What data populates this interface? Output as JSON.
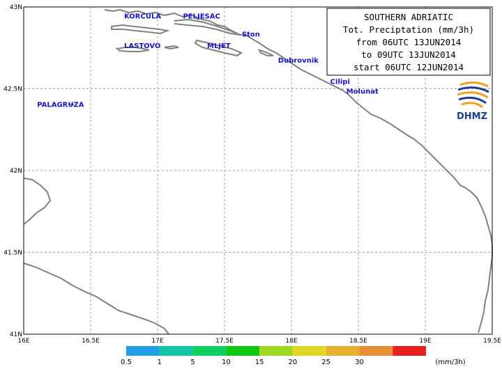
{
  "title_box": {
    "lines": [
      "SOUTHERN  ADRIATIC",
      "Tot. Preciptation (mm/3h)",
      "from 06UTC 13JUN2014",
      "to 09UTC 13JUN2014",
      "start 06UTC 12JUN2014"
    ]
  },
  "logo": {
    "text": "DHMZ",
    "icon": "dhmz-swirl-logo",
    "colors": [
      "#f0a020",
      "#1f3f8f"
    ]
  },
  "axes": {
    "lon_ticks": [
      {
        "value": 16.0,
        "label": "16E"
      },
      {
        "value": 16.5,
        "label": "16.5E"
      },
      {
        "value": 17.0,
        "label": "17E"
      },
      {
        "value": 17.5,
        "label": "17.5E"
      },
      {
        "value": 18.0,
        "label": "18E"
      },
      {
        "value": 18.5,
        "label": "18.5E"
      },
      {
        "value": 19.0,
        "label": "19E"
      },
      {
        "value": 19.5,
        "label": "19.5E"
      }
    ],
    "lat_ticks": [
      {
        "value": 43.0,
        "label": "43N"
      },
      {
        "value": 42.5,
        "label": "42.5N"
      },
      {
        "value": 42.0,
        "label": "42N"
      },
      {
        "value": 41.5,
        "label": "41.5N"
      },
      {
        "value": 41.0,
        "label": "41N"
      }
    ],
    "lon_range": [
      16.0,
      19.5
    ],
    "lat_range": [
      41.0,
      43.0
    ],
    "grid": "dashed"
  },
  "places": [
    {
      "name": "KORCULA",
      "lon": 16.75,
      "lat": 42.93
    },
    {
      "name": "PELJESAC",
      "lon": 17.19,
      "lat": 42.93
    },
    {
      "name": "Ston",
      "lon": 17.63,
      "lat": 42.82
    },
    {
      "name": "LASTOVO",
      "lon": 16.75,
      "lat": 42.75
    },
    {
      "name": "MLJET",
      "lon": 17.37,
      "lat": 42.75
    },
    {
      "name": "Dubrovnik",
      "lon": 17.9,
      "lat": 42.66
    },
    {
      "name": "Cilipi",
      "lon": 18.29,
      "lat": 42.53
    },
    {
      "name": "Molunat",
      "lon": 18.41,
      "lat": 42.47
    },
    {
      "name": "PALAGRUZA",
      "lon": 16.1,
      "lat": 42.39
    }
  ],
  "legend": {
    "unit": "(mm/3h)",
    "labels": [
      "0.5",
      "1",
      "5",
      "10",
      "15",
      "20",
      "25",
      "30"
    ],
    "colors": [
      "#1e9ee6",
      "#12c7a8",
      "#10d060",
      "#10c810",
      "#9ed820",
      "#e0d820",
      "#e8b030",
      "#e89038",
      "#e82020"
    ]
  }
}
